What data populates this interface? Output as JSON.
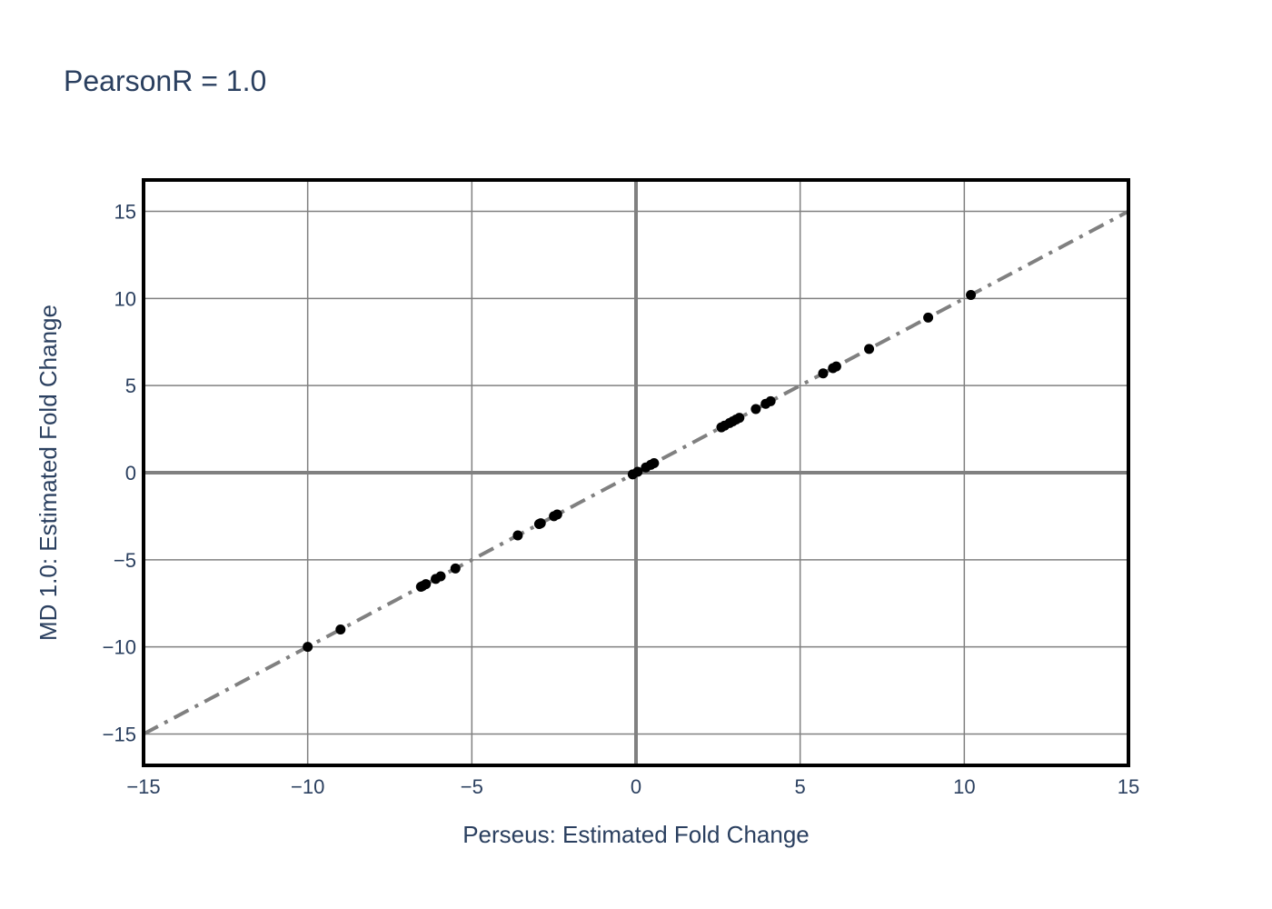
{
  "chart_data": {
    "type": "scatter",
    "title": "PearsonR = 1.0",
    "xlabel": "Perseus: Estimated Fold Change",
    "ylabel": "MD 1.0: Estimated Fold Change",
    "xlim": [
      -15,
      15
    ],
    "ylim": [
      -16.8,
      16.8
    ],
    "xticks": [
      -15,
      -10,
      -5,
      0,
      5,
      10,
      15
    ],
    "xtick_labels": [
      "−15",
      "−10",
      "−5",
      "0",
      "5",
      "10",
      "15"
    ],
    "yticks": [
      -15,
      -10,
      -5,
      0,
      5,
      10,
      15
    ],
    "ytick_labels": [
      "−15",
      "−10",
      "−5",
      "0",
      "5",
      "10",
      "15"
    ],
    "grid": true,
    "marker_color": "#000000",
    "reference_line": {
      "style": "dashdot",
      "color": "#808080",
      "x": [
        -15,
        15
      ],
      "y": [
        -15,
        15
      ]
    },
    "points": {
      "x": [
        -10.0,
        -9.0,
        -6.55,
        -6.5,
        -6.4,
        -6.1,
        -5.95,
        -5.5,
        -3.6,
        -2.95,
        -2.9,
        -2.5,
        -2.4,
        -0.1,
        0.05,
        0.3,
        0.45,
        0.55,
        2.6,
        2.7,
        2.85,
        2.95,
        3.05,
        3.15,
        3.65,
        3.95,
        4.1,
        5.7,
        6.0,
        6.1,
        7.1,
        8.9,
        10.2
      ],
      "y": [
        -10.0,
        -9.0,
        -6.55,
        -6.5,
        -6.4,
        -6.1,
        -5.95,
        -5.5,
        -3.6,
        -2.95,
        -2.9,
        -2.5,
        -2.4,
        -0.1,
        0.05,
        0.3,
        0.45,
        0.55,
        2.6,
        2.7,
        2.85,
        2.95,
        3.05,
        3.15,
        3.65,
        3.95,
        4.1,
        5.7,
        6.0,
        6.1,
        7.1,
        8.9,
        10.2
      ]
    }
  }
}
